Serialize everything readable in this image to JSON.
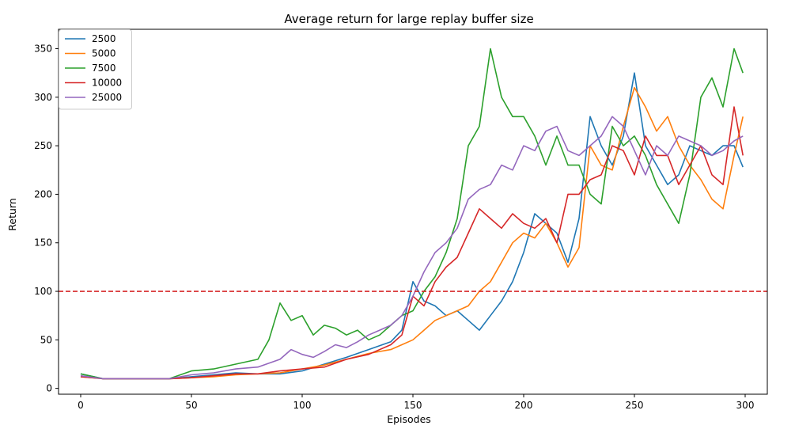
{
  "chart_data": {
    "type": "line",
    "title": "Average return for large replay buffer size",
    "xlabel": "Episodes",
    "ylabel": "Return",
    "xlim": [
      -10,
      310
    ],
    "ylim": [
      -6,
      370
    ],
    "xticks": [
      0,
      50,
      100,
      150,
      200,
      250,
      300
    ],
    "yticks": [
      0,
      50,
      100,
      150,
      200,
      250,
      300,
      350
    ],
    "grid": false,
    "legend_position": "top-left",
    "threshold": {
      "y": 100,
      "color": "#d62728",
      "style": "dashed"
    },
    "series": [
      {
        "name": "2500",
        "color": "#1f77b4",
        "x": [
          0,
          10,
          20,
          30,
          40,
          50,
          60,
          70,
          80,
          90,
          100,
          110,
          120,
          130,
          140,
          145,
          150,
          155,
          160,
          165,
          170,
          175,
          180,
          185,
          190,
          195,
          200,
          205,
          210,
          215,
          220,
          225,
          230,
          235,
          240,
          245,
          250,
          255,
          260,
          265,
          270,
          275,
          280,
          285,
          290,
          295,
          299
        ],
        "y": [
          15,
          10,
          10,
          10,
          10,
          12,
          14,
          16,
          15,
          15,
          18,
          25,
          32,
          40,
          48,
          60,
          110,
          90,
          85,
          75,
          80,
          70,
          60,
          75,
          90,
          110,
          140,
          180,
          170,
          160,
          130,
          175,
          280,
          250,
          230,
          260,
          325,
          250,
          230,
          210,
          220,
          250,
          245,
          240,
          250,
          250,
          228
        ]
      },
      {
        "name": "5000",
        "color": "#ff7f0e",
        "x": [
          0,
          10,
          20,
          30,
          40,
          50,
          60,
          70,
          80,
          90,
          100,
          110,
          120,
          130,
          140,
          145,
          150,
          155,
          160,
          165,
          170,
          175,
          180,
          185,
          190,
          195,
          200,
          205,
          210,
          215,
          220,
          225,
          230,
          235,
          240,
          245,
          250,
          255,
          260,
          265,
          270,
          275,
          280,
          285,
          290,
          295,
          299
        ],
        "y": [
          12,
          10,
          10,
          10,
          10,
          11,
          12,
          14,
          15,
          16,
          20,
          24,
          30,
          36,
          40,
          45,
          50,
          60,
          70,
          75,
          80,
          85,
          100,
          110,
          130,
          150,
          160,
          155,
          170,
          150,
          125,
          145,
          250,
          230,
          225,
          270,
          310,
          290,
          265,
          280,
          250,
          230,
          215,
          195,
          185,
          240,
          280
        ]
      },
      {
        "name": "7500",
        "color": "#2ca02c",
        "x": [
          0,
          10,
          20,
          30,
          40,
          50,
          60,
          70,
          80,
          85,
          90,
          95,
          100,
          105,
          110,
          115,
          120,
          125,
          130,
          135,
          140,
          145,
          150,
          155,
          160,
          165,
          170,
          175,
          180,
          185,
          190,
          195,
          200,
          205,
          210,
          215,
          220,
          225,
          230,
          235,
          240,
          245,
          250,
          255,
          260,
          265,
          270,
          275,
          280,
          285,
          290,
          295,
          299
        ],
        "y": [
          15,
          10,
          10,
          10,
          10,
          18,
          20,
          25,
          30,
          50,
          88,
          70,
          75,
          55,
          65,
          62,
          55,
          60,
          50,
          55,
          65,
          75,
          80,
          100,
          115,
          140,
          175,
          250,
          270,
          350,
          300,
          280,
          280,
          260,
          230,
          260,
          230,
          230,
          200,
          190,
          270,
          250,
          260,
          240,
          210,
          190,
          170,
          220,
          300,
          320,
          290,
          350,
          325
        ]
      },
      {
        "name": "10000",
        "color": "#d62728",
        "x": [
          0,
          10,
          20,
          30,
          40,
          50,
          60,
          70,
          80,
          90,
          100,
          110,
          120,
          130,
          140,
          145,
          150,
          155,
          160,
          165,
          170,
          175,
          180,
          185,
          190,
          195,
          200,
          205,
          210,
          215,
          220,
          225,
          230,
          235,
          240,
          245,
          250,
          255,
          260,
          265,
          270,
          275,
          280,
          285,
          290,
          295,
          299
        ],
        "y": [
          12,
          10,
          10,
          10,
          10,
          11,
          13,
          15,
          15,
          18,
          20,
          22,
          30,
          35,
          45,
          55,
          95,
          85,
          110,
          125,
          135,
          160,
          185,
          175,
          165,
          180,
          170,
          165,
          175,
          150,
          200,
          200,
          215,
          220,
          250,
          245,
          220,
          260,
          240,
          240,
          210,
          230,
          250,
          220,
          210,
          290,
          240
        ]
      },
      {
        "name": "25000",
        "color": "#9467bd",
        "x": [
          0,
          10,
          20,
          30,
          40,
          50,
          60,
          70,
          80,
          90,
          95,
          100,
          105,
          110,
          115,
          120,
          125,
          130,
          135,
          140,
          145,
          150,
          155,
          160,
          165,
          170,
          175,
          180,
          185,
          190,
          195,
          200,
          205,
          210,
          215,
          220,
          225,
          230,
          235,
          240,
          245,
          250,
          255,
          260,
          265,
          270,
          275,
          280,
          285,
          290,
          295,
          299
        ],
        "y": [
          13,
          10,
          10,
          10,
          10,
          14,
          16,
          20,
          22,
          30,
          40,
          35,
          32,
          38,
          45,
          42,
          48,
          55,
          60,
          65,
          75,
          95,
          120,
          140,
          150,
          165,
          195,
          205,
          210,
          230,
          225,
          250,
          245,
          265,
          270,
          245,
          240,
          250,
          260,
          280,
          270,
          245,
          220,
          250,
          240,
          260,
          255,
          250,
          240,
          245,
          255,
          260
        ]
      }
    ]
  }
}
